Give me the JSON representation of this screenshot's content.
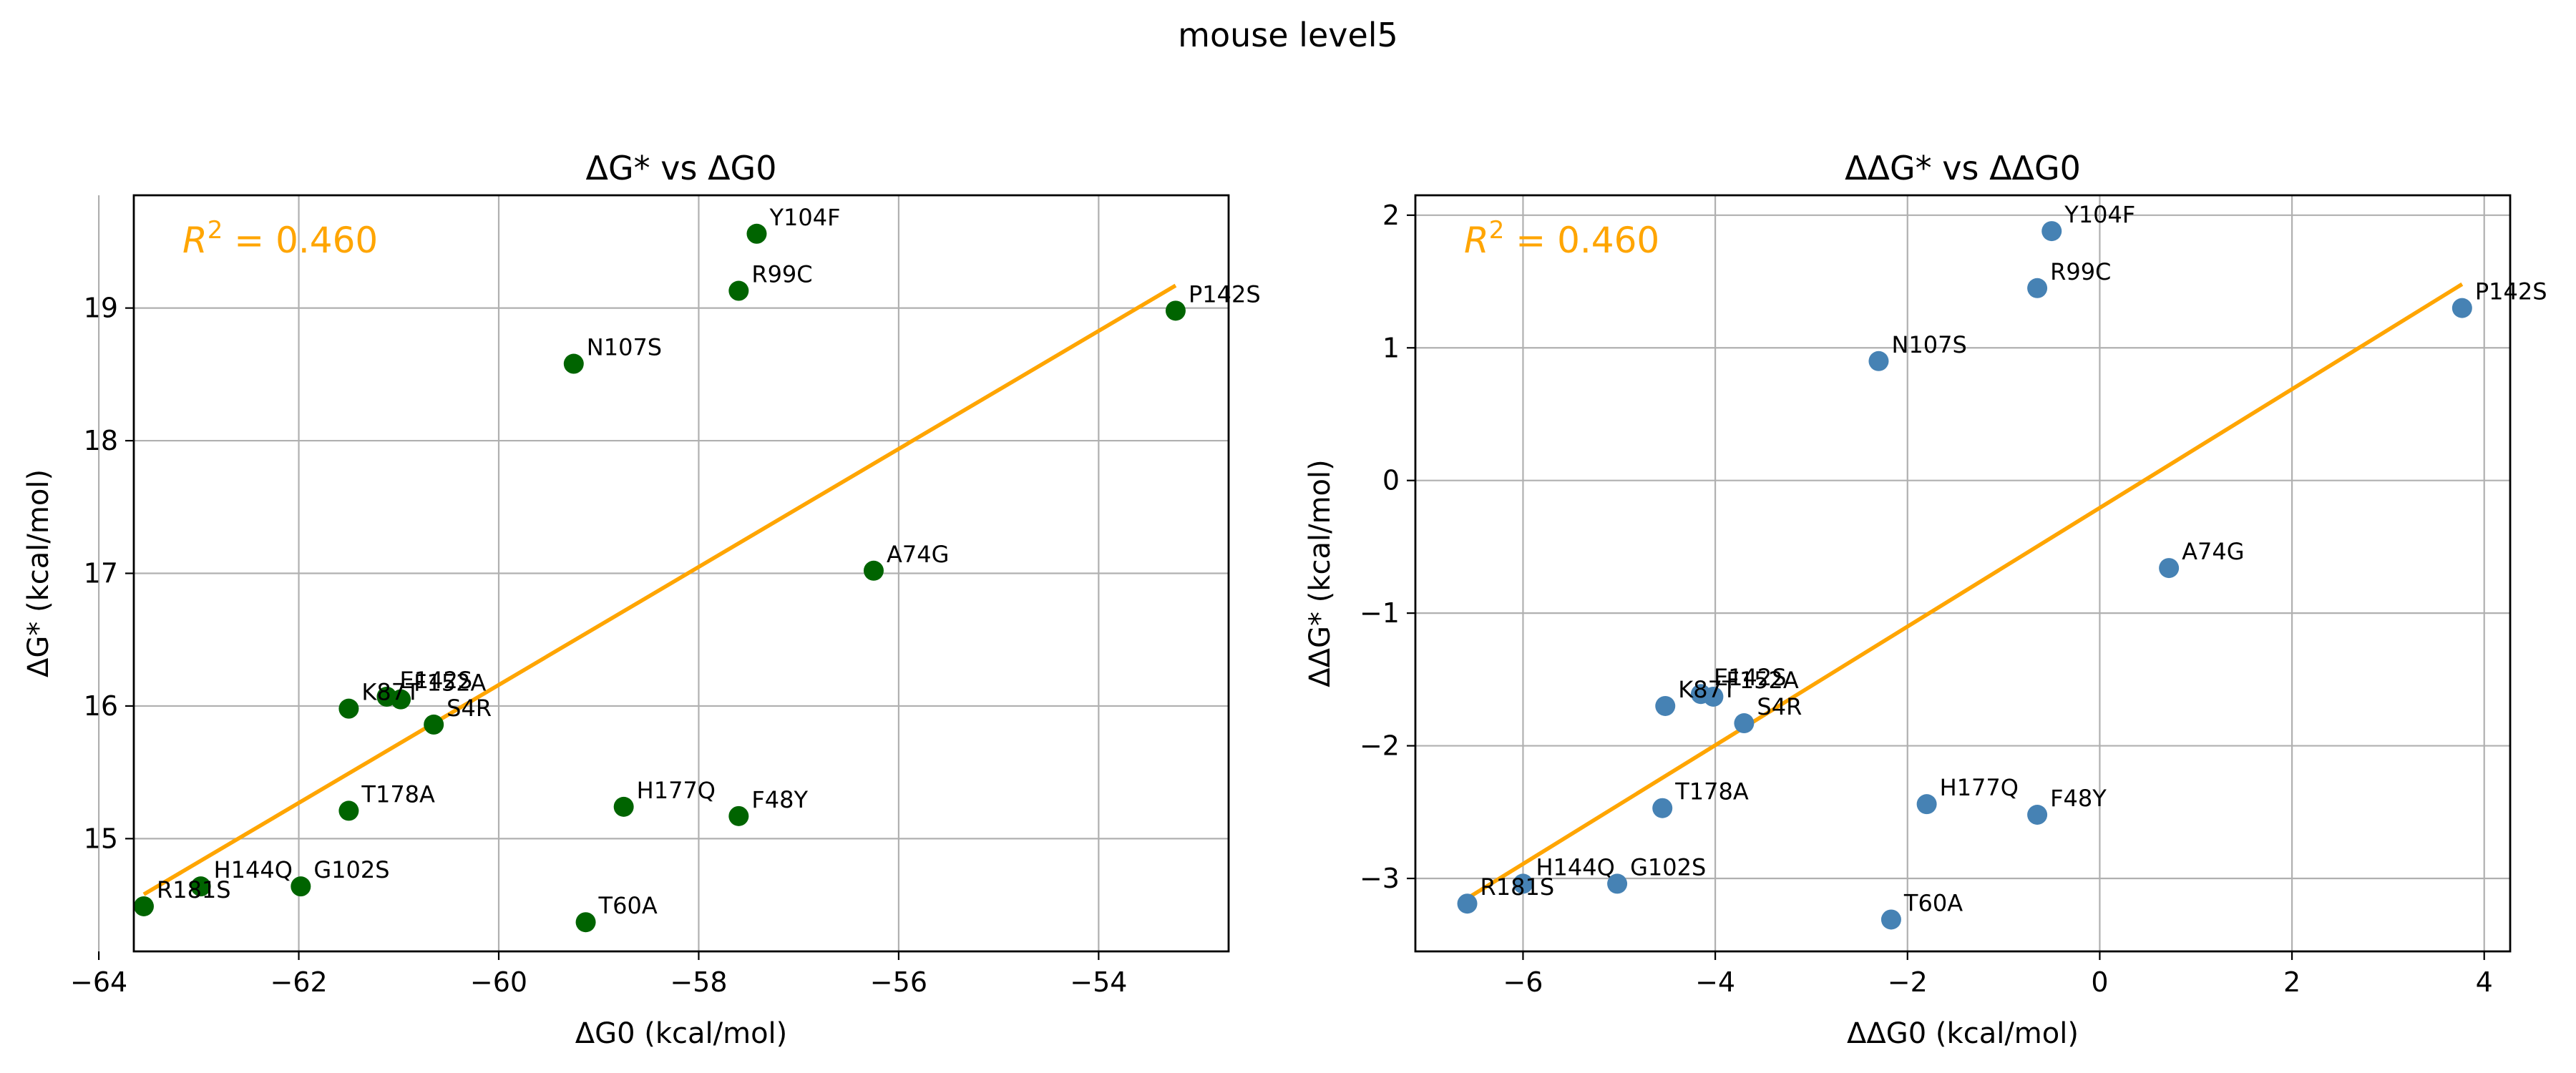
{
  "suptitle": "mouse level5",
  "chart_data": [
    {
      "type": "scatter",
      "title": "ΔG* vs ΔG0",
      "xlabel": "ΔG0 (kcal/mol)",
      "ylabel": "ΔG* (kcal/mol)",
      "xlim": [
        -63.65,
        -52.7
      ],
      "ylim": [
        14.15,
        19.85
      ],
      "xticks": [
        -64,
        -62,
        -60,
        -58,
        -56,
        -54
      ],
      "yticks": [
        15,
        16,
        17,
        18,
        19
      ],
      "grid": true,
      "point_color": "#006400",
      "fit_color": "#FFA500",
      "annotation": "R² = 0.460",
      "points": [
        {
          "label": "Y104F",
          "x": -57.42,
          "y": 19.56
        },
        {
          "label": "R99C",
          "x": -57.6,
          "y": 19.13
        },
        {
          "label": "P142S",
          "x": -53.23,
          "y": 18.98
        },
        {
          "label": "N107S",
          "x": -59.25,
          "y": 18.58
        },
        {
          "label": "A74G",
          "x": -56.25,
          "y": 17.02
        },
        {
          "label": "E142S",
          "x": -61.12,
          "y": 16.07
        },
        {
          "label": "F152A",
          "x": -60.98,
          "y": 16.05
        },
        {
          "label": "K87T",
          "x": -61.5,
          "y": 15.98
        },
        {
          "label": "S4R",
          "x": -60.65,
          "y": 15.86
        },
        {
          "label": "H177Q",
          "x": -58.75,
          "y": 15.24
        },
        {
          "label": "T178A",
          "x": -61.5,
          "y": 15.21
        },
        {
          "label": "F48Y",
          "x": -57.6,
          "y": 15.17
        },
        {
          "label": "H144Q",
          "x": -62.98,
          "y": 14.64
        },
        {
          "label": "G102S",
          "x": -61.98,
          "y": 14.64
        },
        {
          "label": "R181S",
          "x": -63.55,
          "y": 14.49
        },
        {
          "label": "T60A",
          "x": -59.13,
          "y": 14.37
        }
      ],
      "fit_line": {
        "x": [
          -63.55,
          -53.23
        ],
        "y": [
          14.58,
          19.17
        ]
      }
    },
    {
      "type": "scatter",
      "title": "ΔΔG* vs ΔΔG0",
      "xlabel": "ΔΔG0 (kcal/mol)",
      "ylabel": "ΔΔG* (kcal/mol)",
      "xlim": [
        -7.12,
        4.27
      ],
      "ylim": [
        -3.55,
        2.15
      ],
      "xticks": [
        -6,
        -4,
        -2,
        0,
        2,
        4
      ],
      "yticks": [
        -3,
        -2,
        -1,
        0,
        1,
        2
      ],
      "grid": true,
      "point_color": "#4682B4",
      "fit_color": "#FFA500",
      "annotation": "R² = 0.460",
      "points": [
        {
          "label": "Y104F",
          "x": -0.5,
          "y": 1.88
        },
        {
          "label": "R99C",
          "x": -0.65,
          "y": 1.45
        },
        {
          "label": "P142S",
          "x": 3.77,
          "y": 1.3
        },
        {
          "label": "N107S",
          "x": -2.3,
          "y": 0.9
        },
        {
          "label": "A74G",
          "x": 0.72,
          "y": -0.66
        },
        {
          "label": "E142S",
          "x": -4.15,
          "y": -1.61
        },
        {
          "label": "F152A",
          "x": -4.02,
          "y": -1.63
        },
        {
          "label": "K87T",
          "x": -4.52,
          "y": -1.7
        },
        {
          "label": "S4R",
          "x": -3.7,
          "y": -1.83
        },
        {
          "label": "H177Q",
          "x": -1.8,
          "y": -2.44
        },
        {
          "label": "T178A",
          "x": -4.55,
          "y": -2.47
        },
        {
          "label": "F48Y",
          "x": -0.65,
          "y": -2.52
        },
        {
          "label": "H144Q",
          "x": -6.0,
          "y": -3.04
        },
        {
          "label": "G102S",
          "x": -5.02,
          "y": -3.04
        },
        {
          "label": "R181S",
          "x": -6.58,
          "y": -3.19
        },
        {
          "label": "T60A",
          "x": -2.17,
          "y": -3.31
        }
      ],
      "fit_line": {
        "x": [
          -6.58,
          3.77
        ],
        "y": [
          -3.15,
          1.48
        ]
      }
    }
  ]
}
